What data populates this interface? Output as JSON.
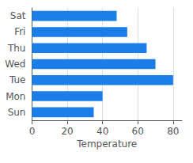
{
  "chart_data": {
    "type": "bar",
    "orientation": "horizontal",
    "categories": [
      "Sat",
      "Fri",
      "Thu",
      "Wed",
      "Tue",
      "Mon",
      "Sun"
    ],
    "values": [
      48,
      54,
      65,
      70,
      80,
      40,
      35
    ],
    "color": "#1a7de8",
    "xlabel": "Temperature",
    "xlim": [
      0,
      85
    ],
    "xticks": [
      0,
      20,
      40,
      60,
      80
    ],
    "grid": true
  }
}
